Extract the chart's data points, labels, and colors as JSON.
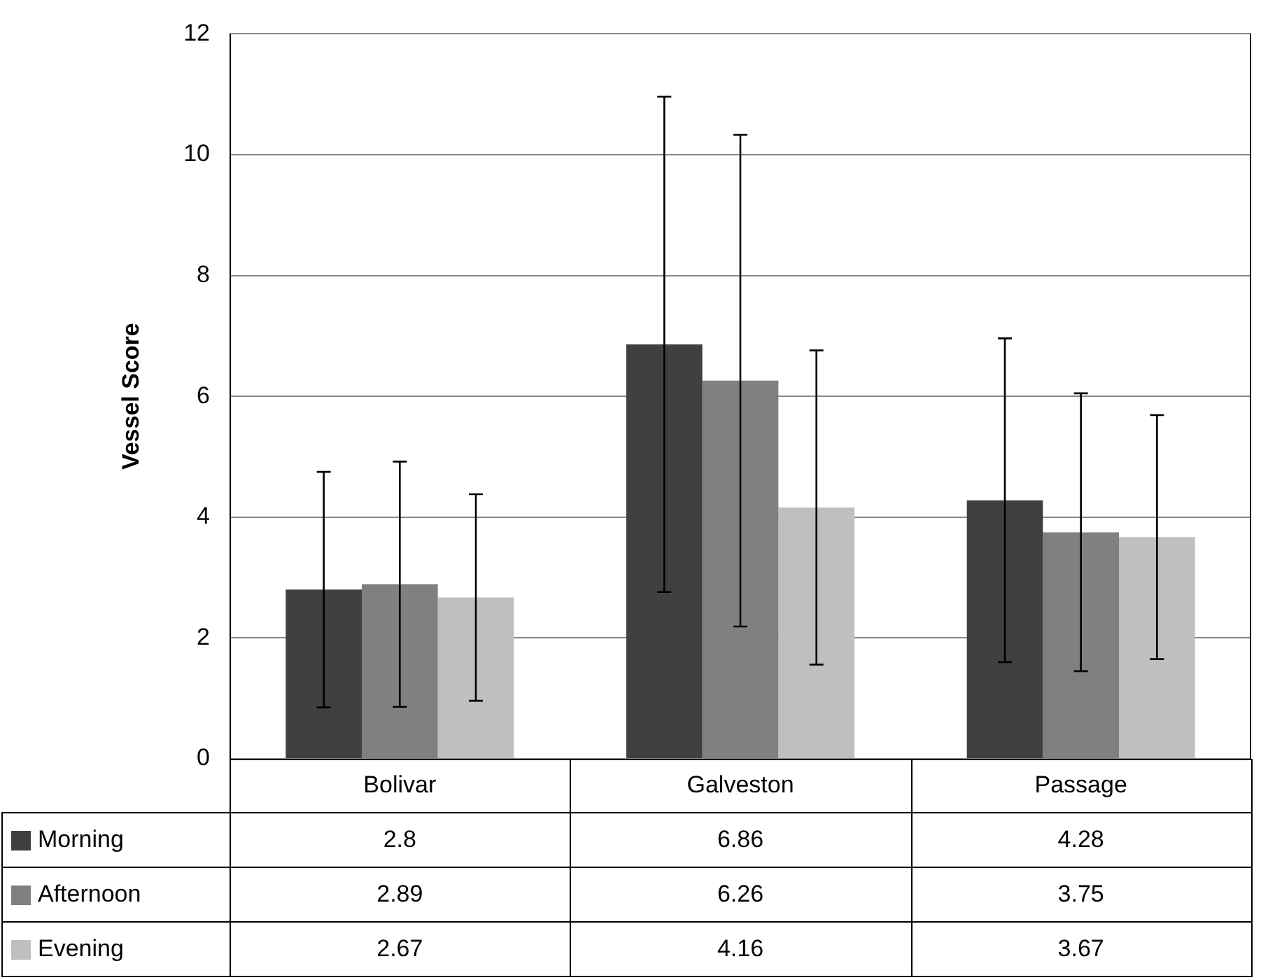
{
  "chart_data": {
    "type": "bar",
    "ylabel": "Vessel Score",
    "categories": [
      "Bolivar",
      "Galveston",
      "Passage"
    ],
    "series": [
      {
        "name": "Morning",
        "color": "#404040",
        "values": [
          2.8,
          6.86,
          4.28
        ],
        "errors": [
          1.95,
          4.1,
          2.68
        ]
      },
      {
        "name": "Afternoon",
        "color": "#808080",
        "values": [
          2.89,
          6.26,
          3.75
        ],
        "errors": [
          2.03,
          4.07,
          2.3
        ]
      },
      {
        "name": "Evening",
        "color": "#bfbfbf",
        "values": [
          2.67,
          4.16,
          3.67
        ],
        "errors": [
          1.71,
          2.6,
          2.02
        ]
      }
    ],
    "ylim": [
      0,
      12
    ],
    "yticks": [
      0,
      2,
      4,
      6,
      8,
      10,
      12
    ],
    "grid": "y",
    "legend": "bottom",
    "data_labels": true
  }
}
